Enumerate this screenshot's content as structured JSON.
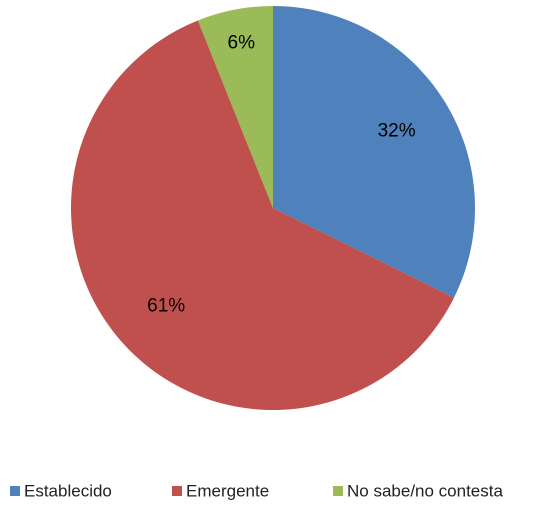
{
  "chart_data": {
    "type": "pie",
    "categories": [
      "Establecido",
      "Emergente",
      "No sabe/no contesta"
    ],
    "values": [
      32,
      61,
      6
    ],
    "value_labels": [
      "32%",
      "61%",
      "6%"
    ],
    "colors": [
      "#4f81bd",
      "#c0504d",
      "#9bbb59"
    ],
    "legend": "bottom"
  }
}
